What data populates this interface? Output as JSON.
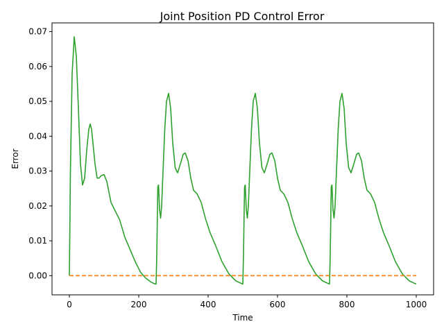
{
  "chart_data": {
    "type": "line",
    "title": "Joint Position PD Control Error",
    "xlabel": "Time",
    "ylabel": "Error",
    "xlim": [
      -50,
      1050
    ],
    "ylim": [
      -0.0055,
      0.0725
    ],
    "xticks": [
      0,
      200,
      400,
      600,
      800,
      1000
    ],
    "yticks": [
      0.0,
      0.01,
      0.02,
      0.03,
      0.04,
      0.05,
      0.06,
      0.07
    ],
    "xtick_labels": [
      "0",
      "200",
      "400",
      "600",
      "800",
      "1000"
    ],
    "ytick_labels": [
      "0.00",
      "0.01",
      "0.02",
      "0.03",
      "0.04",
      "0.05",
      "0.06",
      "0.07"
    ],
    "grid": false,
    "series": [
      {
        "color": "#2ca02c",
        "style": "solid",
        "x": [
          0,
          3,
          8,
          14,
          20,
          26,
          32,
          38,
          44,
          50,
          56,
          60,
          64,
          68,
          74,
          80,
          86,
          92,
          100,
          108,
          114,
          120,
          130,
          145,
          160,
          175,
          190,
          205,
          220,
          235,
          245,
          250,
          252,
          255,
          257,
          260,
          263,
          266,
          270,
          275,
          280,
          286,
          292,
          298,
          305,
          312,
          320,
          328,
          334,
          342,
          350,
          358,
          368,
          380,
          392,
          405,
          420,
          440,
          460,
          480,
          495,
          500,
          502,
          505,
          507,
          510,
          513,
          516,
          520,
          525,
          530,
          536,
          542,
          548,
          555,
          562,
          570,
          578,
          584,
          592,
          600,
          608,
          618,
          630,
          642,
          655,
          670,
          690,
          710,
          730,
          745,
          750,
          752,
          755,
          757,
          760,
          763,
          766,
          770,
          775,
          780,
          786,
          792,
          798,
          805,
          812,
          820,
          828,
          834,
          842,
          850,
          858,
          868,
          880,
          892,
          905,
          920,
          940,
          960,
          980,
          995,
          1000
        ],
        "y": [
          0.0,
          0.03,
          0.058,
          0.0685,
          0.063,
          0.048,
          0.032,
          0.026,
          0.028,
          0.036,
          0.042,
          0.0435,
          0.042,
          0.038,
          0.032,
          0.028,
          0.028,
          0.0287,
          0.029,
          0.027,
          0.024,
          0.021,
          0.019,
          0.016,
          0.011,
          0.0075,
          0.004,
          0.001,
          -0.0007,
          -0.0018,
          -0.0023,
          -0.0024,
          0.006,
          0.0255,
          0.026,
          0.019,
          0.0165,
          0.02,
          0.03,
          0.042,
          0.05,
          0.0523,
          0.048,
          0.038,
          0.031,
          0.0295,
          0.032,
          0.0348,
          0.0352,
          0.033,
          0.028,
          0.0245,
          0.0235,
          0.021,
          0.0165,
          0.0125,
          0.009,
          0.004,
          0.0005,
          -0.0015,
          -0.0022,
          -0.0024,
          0.006,
          0.0255,
          0.026,
          0.019,
          0.0165,
          0.02,
          0.03,
          0.042,
          0.05,
          0.0523,
          0.048,
          0.038,
          0.031,
          0.0295,
          0.032,
          0.0348,
          0.0352,
          0.033,
          0.028,
          0.0245,
          0.0235,
          0.021,
          0.0165,
          0.0125,
          0.009,
          0.004,
          0.0005,
          -0.0015,
          -0.0022,
          -0.0024,
          0.006,
          0.0255,
          0.026,
          0.019,
          0.0165,
          0.02,
          0.03,
          0.042,
          0.05,
          0.0523,
          0.048,
          0.038,
          0.031,
          0.0295,
          0.032,
          0.0348,
          0.0352,
          0.033,
          0.028,
          0.0245,
          0.0235,
          0.021,
          0.0165,
          0.0125,
          0.009,
          0.004,
          0.0005,
          -0.0015,
          -0.0022,
          -0.0024
        ]
      },
      {
        "color": "#ff7f0e",
        "style": "dashed",
        "x": [
          0,
          1000
        ],
        "y": [
          0.0,
          0.0
        ]
      }
    ]
  }
}
